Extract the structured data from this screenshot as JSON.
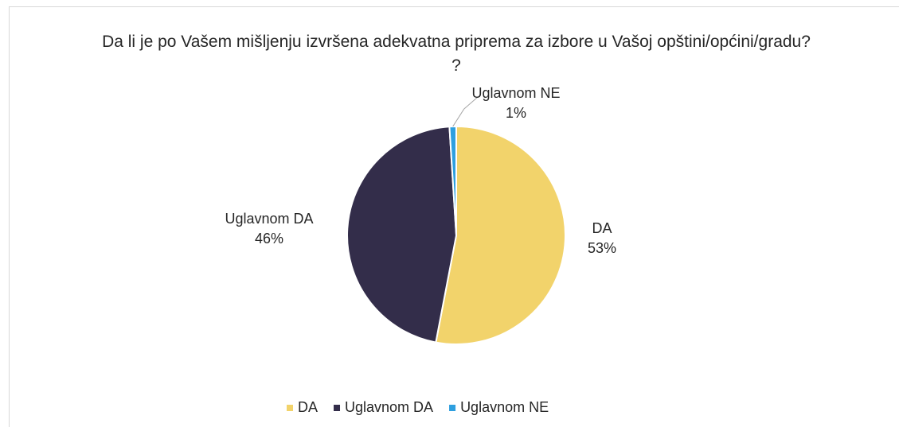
{
  "chart_data": {
    "type": "pie",
    "title": "Da li je po Vašem mišljenju izvršena adekvatna priprema za izbore u Vašoj opštini/općini/gradu? ?",
    "categories": [
      "DA",
      "Uglavnom DA",
      "Uglavnom NE"
    ],
    "values": [
      53,
      46,
      1
    ],
    "value_labels": [
      "53%",
      "46%",
      "1%"
    ],
    "colors": [
      "#f2d36b",
      "#332d4a",
      "#2e9fdf"
    ],
    "legend": "bottom"
  }
}
